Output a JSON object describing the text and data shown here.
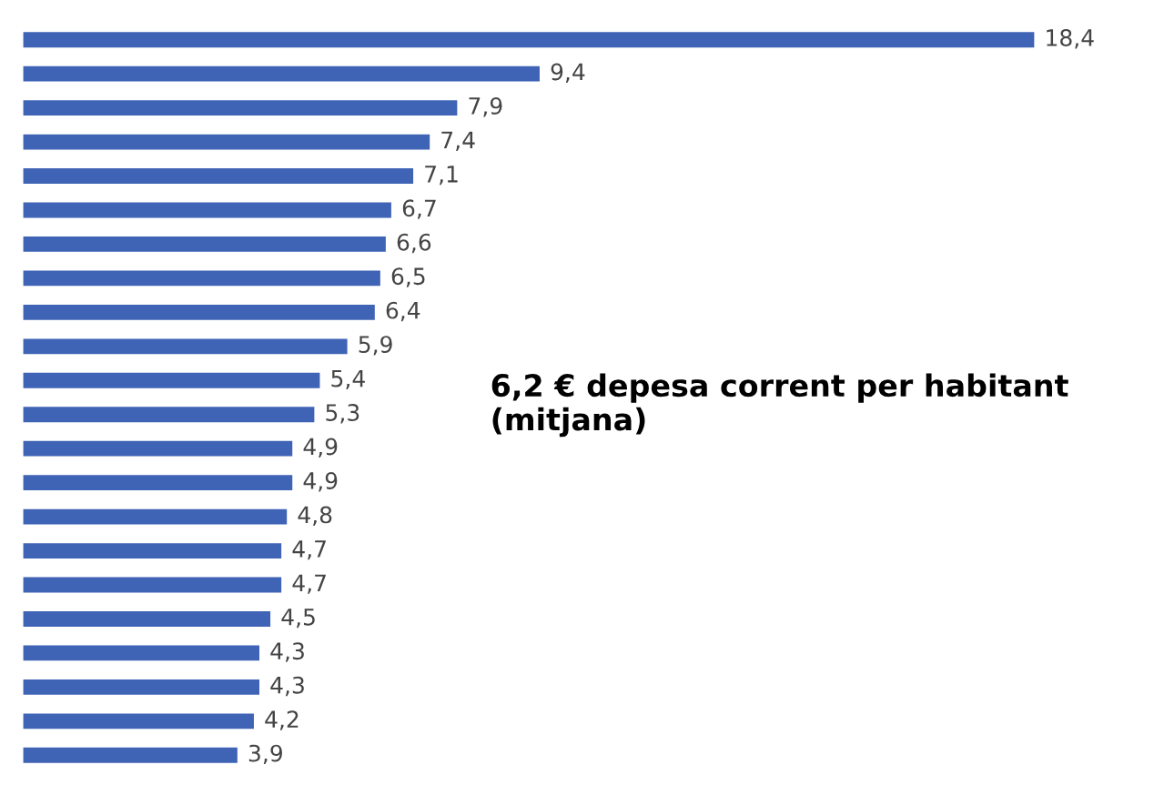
{
  "chart_data": {
    "type": "bar",
    "orientation": "horizontal",
    "categories": [
      null,
      null,
      null,
      null,
      null,
      null,
      null,
      null,
      null,
      null,
      null,
      null,
      null,
      null,
      null,
      null,
      null,
      null,
      null,
      null,
      null,
      null
    ],
    "values": [
      18.4,
      9.4,
      7.9,
      7.4,
      7.1,
      6.7,
      6.6,
      6.5,
      6.4,
      5.9,
      5.4,
      5.3,
      4.9,
      4.9,
      4.8,
      4.7,
      4.7,
      4.5,
      4.3,
      4.3,
      4.2,
      3.9
    ],
    "value_labels": [
      "18,4",
      "9,4",
      "7,9",
      "7,4",
      "7,1",
      "6,7",
      "6,6",
      "6,5",
      "6,4",
      "5,9",
      "5,4",
      "5,3",
      "4,9",
      "4,9",
      "4,8",
      "4,7",
      "4,7",
      "4,5",
      "4,3",
      "4,3",
      "4,2",
      "3,9"
    ],
    "color": "#3f63b5",
    "annotations": [
      "6,2 € depesa corrent per habitant (mitjana)"
    ],
    "grid": false,
    "legend": false,
    "tick_labels": false
  }
}
